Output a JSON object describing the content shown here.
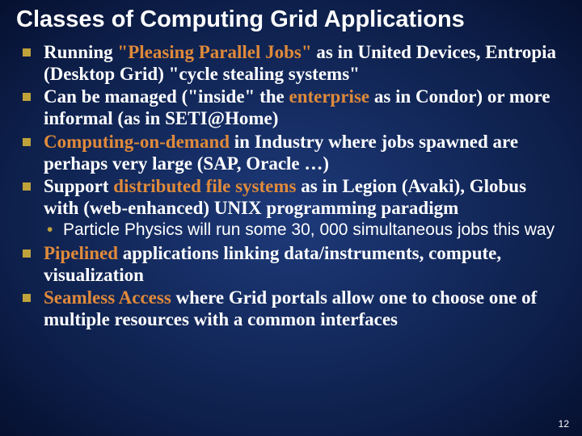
{
  "title": "Classes of Computing Grid Applications",
  "bullets": [
    {
      "pre": "Running ",
      "hl": "\"Pleasing Parallel Jobs\"",
      "post": " as in United Devices, Entropia (Desktop Grid) \"cycle stealing systems\""
    },
    {
      "pre": "Can be managed (\"inside\" the ",
      "hl": "enterprise",
      "post": " as in Condor) or more informal (as in SETI@Home)"
    },
    {
      "pre": "",
      "hl": "Computing-on-demand",
      "post": " in Industry where jobs spawned are perhaps very large (SAP, Oracle …)"
    },
    {
      "pre": "Support ",
      "hl": "distributed file systems",
      "post": " as in Legion (Avaki), Globus with (web-enhanced) UNIX programming paradigm"
    }
  ],
  "subbullet": "Particle Physics will run some 30, 000 simultaneous jobs this way",
  "bullets2": [
    {
      "pre": "",
      "hl": "Pipelined",
      "post": " applications linking data/instruments, compute, visualization"
    },
    {
      "pre": "",
      "hl": "Seamless Access",
      "post": " where Grid portals allow one to choose one of multiple resources with a common interfaces"
    }
  ],
  "pageNumber": "12",
  "colors": {
    "highlight": "#e08a3a",
    "bulletSquare": "#bfa23a",
    "text": "#ffffff"
  },
  "typography": {
    "titleFontFamily": "Arial",
    "titleSize": 29,
    "bodyFontFamily": "Times New Roman",
    "bodySize": 23,
    "subSize": 21
  }
}
